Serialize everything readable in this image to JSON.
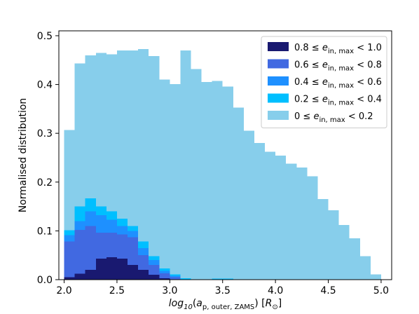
{
  "chart_data": {
    "type": "bar",
    "subtype": "stacked-histogram",
    "xlabel": "log10(a_p, outer, ZAMS) [R_☉]",
    "ylabel": "Normalised distribution",
    "xlim": [
      1.95,
      5.1
    ],
    "ylim": [
      0,
      0.51
    ],
    "xticks": [
      "2.0",
      "2.5",
      "3.0",
      "3.5",
      "4.0",
      "4.5",
      "5.0"
    ],
    "yticks": [
      "0.0",
      "0.1",
      "0.2",
      "0.3",
      "0.4",
      "0.5"
    ],
    "grid": false,
    "legend_position": "top-right",
    "bin_edges": [
      2.0,
      2.1,
      2.2,
      2.3,
      2.4,
      2.5,
      2.6,
      2.7,
      2.8,
      2.9,
      3.0,
      3.1,
      3.2,
      3.3,
      3.4,
      3.5,
      3.6,
      3.7,
      3.8,
      3.9,
      4.0,
      4.1,
      4.2,
      4.3,
      4.4,
      4.5,
      4.6,
      4.7,
      4.8,
      4.9,
      5.0
    ],
    "series": [
      {
        "name": "0.8 ≤ e_in,max < 1.0",
        "color": "#191970",
        "values": [
          0.005,
          0.012,
          0.02,
          0.043,
          0.046,
          0.043,
          0.03,
          0.02,
          0.01,
          0.003,
          0.0,
          0,
          0,
          0,
          0,
          0,
          0,
          0,
          0,
          0,
          0,
          0,
          0,
          0,
          0,
          0,
          0,
          0,
          0,
          0
        ]
      },
      {
        "name": "0.6 ≤ e_in,max < 0.8",
        "color": "#4169e1",
        "values": [
          0.073,
          0.09,
          0.09,
          0.053,
          0.05,
          0.05,
          0.057,
          0.03,
          0.02,
          0.01,
          0.005,
          0,
          0,
          0,
          0,
          0,
          0,
          0,
          0,
          0,
          0,
          0,
          0,
          0,
          0,
          0,
          0,
          0,
          0,
          0
        ]
      },
      {
        "name": "0.4 ≤ e_in,max < 0.6",
        "color": "#1e90ff",
        "values": [
          0.013,
          0.018,
          0.03,
          0.036,
          0.027,
          0.017,
          0.013,
          0.015,
          0.01,
          0.005,
          0.003,
          0.001,
          0,
          0,
          0,
          0,
          0,
          0,
          0,
          0,
          0,
          0,
          0,
          0,
          0,
          0,
          0,
          0,
          0,
          0
        ]
      },
      {
        "name": "0.2 ≤ e_in,max < 0.4",
        "color": "#00bfff",
        "values": [
          0.01,
          0.03,
          0.027,
          0.018,
          0.017,
          0.015,
          0.01,
          0.013,
          0.008,
          0.005,
          0.003,
          0.002,
          0.001,
          0.001,
          0.002,
          0.002,
          0.001,
          0.001,
          0,
          0,
          0,
          0,
          0,
          0,
          0,
          0,
          0,
          0,
          0,
          0
        ]
      },
      {
        "name": "0 ≤ e_in,max < 0.2",
        "color": "#87ceeb",
        "values": [
          0.206,
          0.293,
          0.293,
          0.315,
          0.322,
          0.345,
          0.36,
          0.395,
          0.41,
          0.387,
          0.39,
          0.467,
          0.431,
          0.404,
          0.405,
          0.394,
          0.352,
          0.304,
          0.28,
          0.262,
          0.254,
          0.238,
          0.23,
          0.212,
          0.165,
          0.142,
          0.112,
          0.085,
          0.048,
          0.011
        ]
      }
    ]
  },
  "legend": {
    "entries": [
      {
        "lhs": "0.8 ≤ ",
        "sym": "e",
        "sub": "in, max",
        "rhs": " < 1.0",
        "color": "#191970"
      },
      {
        "lhs": "0.6 ≤ ",
        "sym": "e",
        "sub": "in, max",
        "rhs": " < 0.8",
        "color": "#4169e1"
      },
      {
        "lhs": "0.4 ≤ ",
        "sym": "e",
        "sub": "in, max",
        "rhs": " < 0.6",
        "color": "#1e90ff"
      },
      {
        "lhs": "0.2 ≤ ",
        "sym": "e",
        "sub": "in, max",
        "rhs": " < 0.4",
        "color": "#00bfff"
      },
      {
        "lhs": "0 ≤ ",
        "sym": "e",
        "sub": "in, max",
        "rhs": " < 0.2",
        "color": "#87ceeb"
      }
    ]
  },
  "xaxis_title": {
    "prefix": "log",
    "prefix_sub": "10",
    "open": "(",
    "sym": "a",
    "sym_sub": "p, outer, ZAMS",
    "close": ")",
    "unit_open": " [",
    "unit_sym": "R",
    "unit_sub": "⊙",
    "unit_close": "]"
  }
}
